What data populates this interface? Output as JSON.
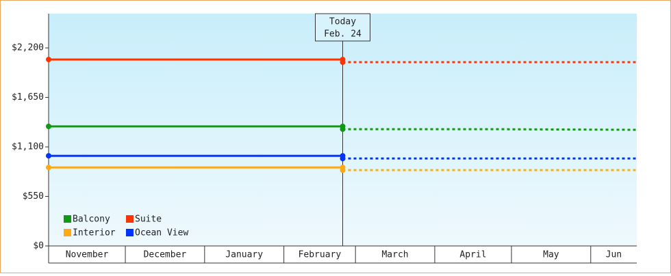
{
  "chart_data": {
    "type": "line",
    "categories": [
      "November",
      "December",
      "January",
      "February",
      "March",
      "April",
      "May",
      "Jun"
    ],
    "xticks": [
      0,
      30,
      61,
      92,
      120,
      151,
      181,
      212
    ],
    "xlim": [
      0,
      230
    ],
    "ylim": [
      0,
      2580
    ],
    "yticks": [
      {
        "value": 0,
        "label": "$0"
      },
      {
        "value": 550,
        "label": "$550"
      },
      {
        "value": 1100,
        "label": "$1,100"
      },
      {
        "value": 1650,
        "label": "$1,650"
      },
      {
        "value": 2200,
        "label": "$2,200"
      }
    ],
    "annotation": {
      "lines": [
        "Today",
        "Feb. 24"
      ],
      "x": 115
    },
    "legend": "lower left",
    "series": [
      {
        "name": "Balcony",
        "color": "#119911",
        "x": [
          0,
          115
        ],
        "values": [
          1328,
          1328
        ],
        "forecast_x": [
          115,
          173,
          230
        ],
        "forecast_values": [
          1297,
          1297,
          1290
        ]
      },
      {
        "name": "Suite",
        "color": "#ff3300",
        "x": [
          0,
          115
        ],
        "values": [
          2071,
          2071
        ],
        "forecast_x": [
          115,
          230
        ],
        "forecast_values": [
          2041,
          2041
        ]
      },
      {
        "name": "Interior",
        "color": "#ffaa11",
        "x": [
          0,
          115
        ],
        "values": [
          872,
          872
        ],
        "forecast_x": [
          115,
          230
        ],
        "forecast_values": [
          842,
          842
        ]
      },
      {
        "name": "Ocean View",
        "color": "#0033ff",
        "x": [
          0,
          115
        ],
        "values": [
          1001,
          1001
        ],
        "forecast_x": [
          115,
          230
        ],
        "forecast_values": [
          971,
          971
        ]
      }
    ]
  }
}
